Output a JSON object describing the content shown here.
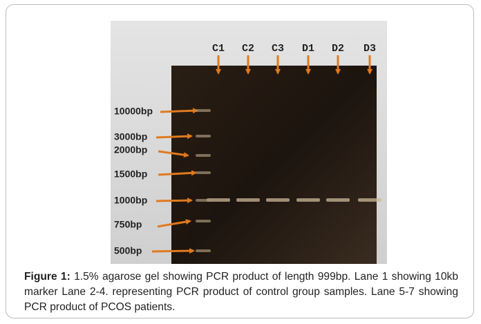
{
  "figure": {
    "lane_labels": [
      "C1",
      "C2",
      "C3",
      "D1",
      "D2",
      "D3"
    ],
    "marker_labels": [
      "10000bp",
      "3000bp",
      "2000bp",
      "1500bp",
      "1000bp",
      "750bp",
      "500bp"
    ],
    "caption": {
      "label": "Figure 1:",
      "text": "1.5% agarose gel showing PCR product of length 999bp. Lane 1 showing 10kb marker Lane 2-4. representing PCR product of control group samples. Lane 5-7 showing PCR product of PCOS patients."
    }
  }
}
